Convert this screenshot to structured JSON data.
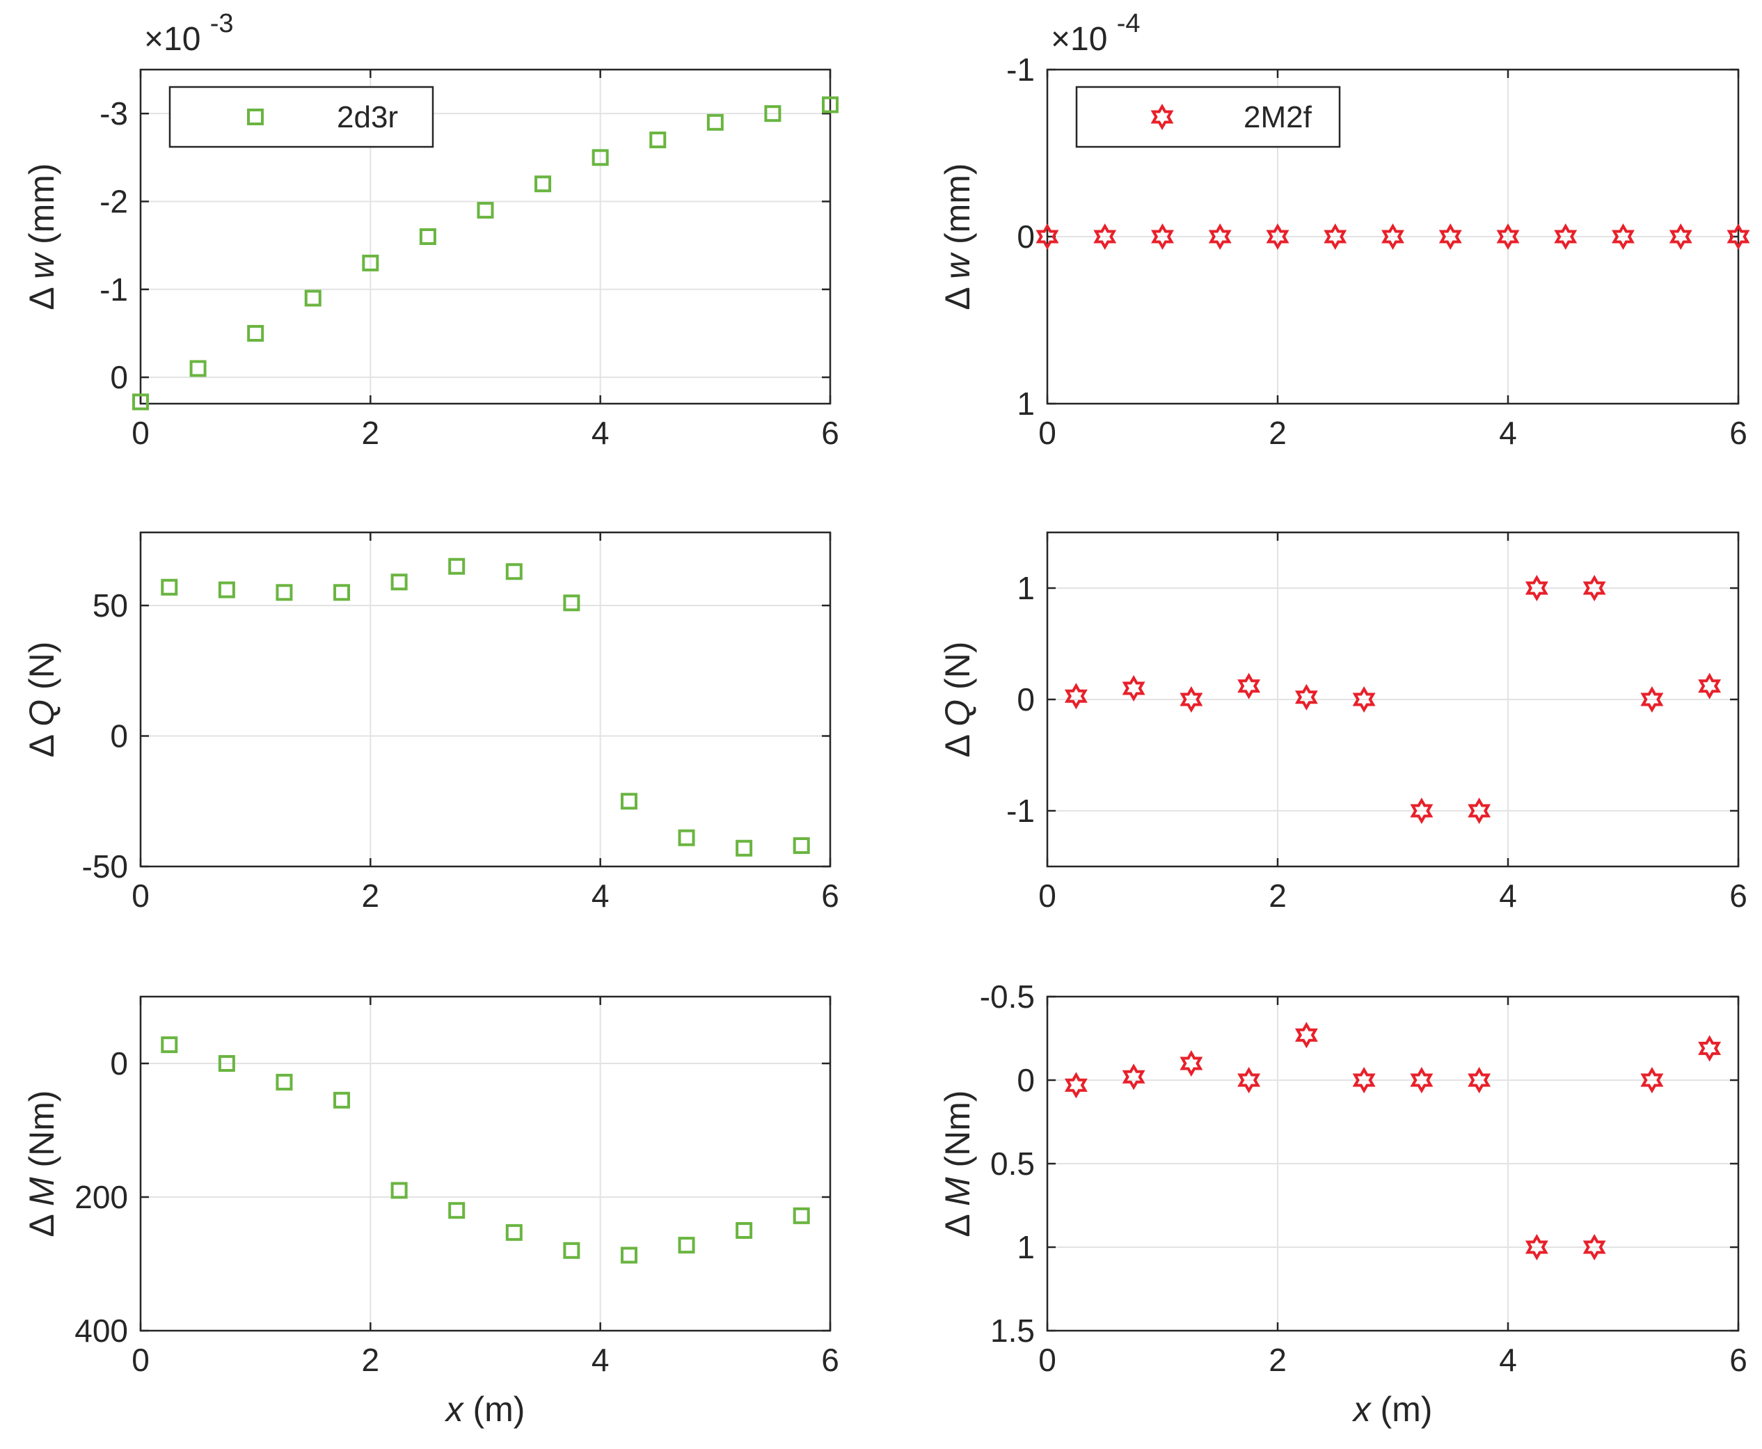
{
  "colors": {
    "green": "#6ab541",
    "red": "#e8202a",
    "grid": "#e3e3e3",
    "axis": "#262626"
  },
  "chart_data": [
    {
      "id": "w-2d3r",
      "type": "scatter",
      "marker": "square",
      "color": "#6ab541",
      "series_name": "2d3r",
      "ylabel": {
        "symbol": "Δ",
        "var": "w",
        "unit": " (mm)"
      },
      "xlabel": null,
      "exponent": {
        "prefix": "×10",
        "power": "-3"
      },
      "xlim": [
        0,
        6
      ],
      "ylim": [
        -3.5,
        0.3
      ],
      "yreversed": true,
      "xticks": [
        0,
        2,
        4,
        6
      ],
      "xticklabels": [
        "0",
        "2",
        "4",
        "6"
      ],
      "yticks": [
        -3,
        -2,
        -1,
        0
      ],
      "yticklabels": [
        "-3",
        "-2",
        "-1",
        "0"
      ],
      "legend": "top-left",
      "x": [
        0,
        0.5,
        1,
        1.5,
        2,
        2.5,
        3,
        3.5,
        4,
        4.5,
        5,
        5.5,
        6
      ],
      "y": [
        0.28,
        -0.1,
        -0.5,
        -0.9,
        -1.3,
        -1.6,
        -1.9,
        -2.2,
        -2.5,
        -2.7,
        -2.9,
        -3.0,
        -3.1
      ]
    },
    {
      "id": "w-2M2f",
      "type": "scatter",
      "marker": "hexagram",
      "color": "#e8202a",
      "series_name": "2M2f",
      "ylabel": {
        "symbol": "Δ",
        "var": "w",
        "unit": " (mm)"
      },
      "xlabel": null,
      "exponent": {
        "prefix": "×10",
        "power": "-4"
      },
      "xlim": [
        0,
        6
      ],
      "ylim": [
        -1,
        1
      ],
      "yreversed": true,
      "xticks": [
        0,
        2,
        4,
        6
      ],
      "xticklabels": [
        "0",
        "2",
        "4",
        "6"
      ],
      "yticks": [
        -1,
        0,
        1
      ],
      "yticklabels": [
        "-1",
        "0",
        "1"
      ],
      "legend": "top-left",
      "x": [
        0,
        0.5,
        1,
        1.5,
        2,
        2.5,
        3,
        3.5,
        4,
        4.5,
        5,
        5.5,
        6
      ],
      "y": [
        0,
        0,
        0,
        0,
        0,
        0,
        0,
        0,
        0,
        0,
        0,
        0,
        0
      ]
    },
    {
      "id": "Q-2d3r",
      "type": "scatter",
      "marker": "square",
      "color": "#6ab541",
      "ylabel": {
        "symbol": "Δ",
        "var": "Q",
        "unit": " (N)"
      },
      "xlabel": null,
      "xlim": [
        0,
        6
      ],
      "ylim": [
        -50,
        78
      ],
      "yreversed": false,
      "xticks": [
        0,
        2,
        4,
        6
      ],
      "xticklabels": [
        "0",
        "2",
        "4",
        "6"
      ],
      "yticks": [
        -50,
        0,
        50
      ],
      "yticklabels": [
        "-50",
        "0",
        "50"
      ],
      "x": [
        0.25,
        0.75,
        1.25,
        1.75,
        2.25,
        2.75,
        3.25,
        3.75,
        4.25,
        4.75,
        5.25,
        5.75
      ],
      "y": [
        57,
        56,
        55,
        55,
        59,
        65,
        63,
        51,
        -25,
        -39,
        -43,
        -42
      ]
    },
    {
      "id": "Q-2M2f",
      "type": "scatter",
      "marker": "hexagram",
      "color": "#e8202a",
      "ylabel": {
        "symbol": "Δ",
        "var": "Q",
        "unit": " (N)"
      },
      "xlabel": null,
      "xlim": [
        0,
        6
      ],
      "ylim": [
        -1.5,
        1.5
      ],
      "yreversed": false,
      "xticks": [
        0,
        2,
        4,
        6
      ],
      "xticklabels": [
        "0",
        "2",
        "4",
        "6"
      ],
      "yticks": [
        -1,
        0,
        1
      ],
      "yticklabels": [
        "-1",
        "0",
        "1"
      ],
      "x": [
        0.25,
        0.75,
        1.25,
        1.75,
        2.25,
        2.75,
        3.25,
        3.75,
        4.25,
        4.75,
        5.25,
        5.75
      ],
      "y": [
        0.03,
        0.1,
        0,
        0.12,
        0.02,
        0,
        -1,
        -1,
        1,
        1,
        0,
        0.12
      ]
    },
    {
      "id": "M-2d3r",
      "type": "scatter",
      "marker": "square",
      "color": "#6ab541",
      "ylabel": {
        "symbol": "Δ",
        "var": "M",
        "unit": " (Nm)"
      },
      "xlabel": {
        "var": "x",
        "unit": " (m)"
      },
      "xlim": [
        0,
        6
      ],
      "ylim": [
        -100,
        400
      ],
      "yreversed": true,
      "xticks": [
        0,
        2,
        4,
        6
      ],
      "xticklabels": [
        "0",
        "2",
        "4",
        "6"
      ],
      "yticks": [
        0,
        200,
        400
      ],
      "yticklabels": [
        "0",
        "200",
        "400"
      ],
      "x": [
        0.25,
        0.75,
        1.25,
        1.75,
        2.25,
        2.75,
        3.25,
        3.75,
        4.25,
        4.75,
        5.25,
        5.75
      ],
      "y": [
        -28,
        0,
        28,
        55,
        190,
        220,
        253,
        280,
        287,
        272,
        250,
        228
      ]
    },
    {
      "id": "M-2M2f",
      "type": "scatter",
      "marker": "hexagram",
      "color": "#e8202a",
      "ylabel": {
        "symbol": "Δ",
        "var": "M",
        "unit": " (Nm)"
      },
      "xlabel": {
        "var": "x",
        "unit": " (m)"
      },
      "xlim": [
        0,
        6
      ],
      "ylim": [
        -0.5,
        1.5
      ],
      "yreversed": true,
      "xticks": [
        0,
        2,
        4,
        6
      ],
      "xticklabels": [
        "0",
        "2",
        "4",
        "6"
      ],
      "yticks": [
        -0.5,
        0,
        0.5,
        1,
        1.5
      ],
      "yticklabels": [
        "-0.5",
        "0",
        "0.5",
        "1",
        "1.5"
      ],
      "x": [
        0.25,
        0.75,
        1.25,
        1.75,
        2.25,
        2.75,
        3.25,
        3.75,
        4.25,
        4.75,
        5.25,
        5.75
      ],
      "y": [
        0.03,
        -0.02,
        -0.1,
        0,
        -0.27,
        0,
        0,
        0,
        1,
        1,
        0,
        -0.19
      ]
    }
  ]
}
